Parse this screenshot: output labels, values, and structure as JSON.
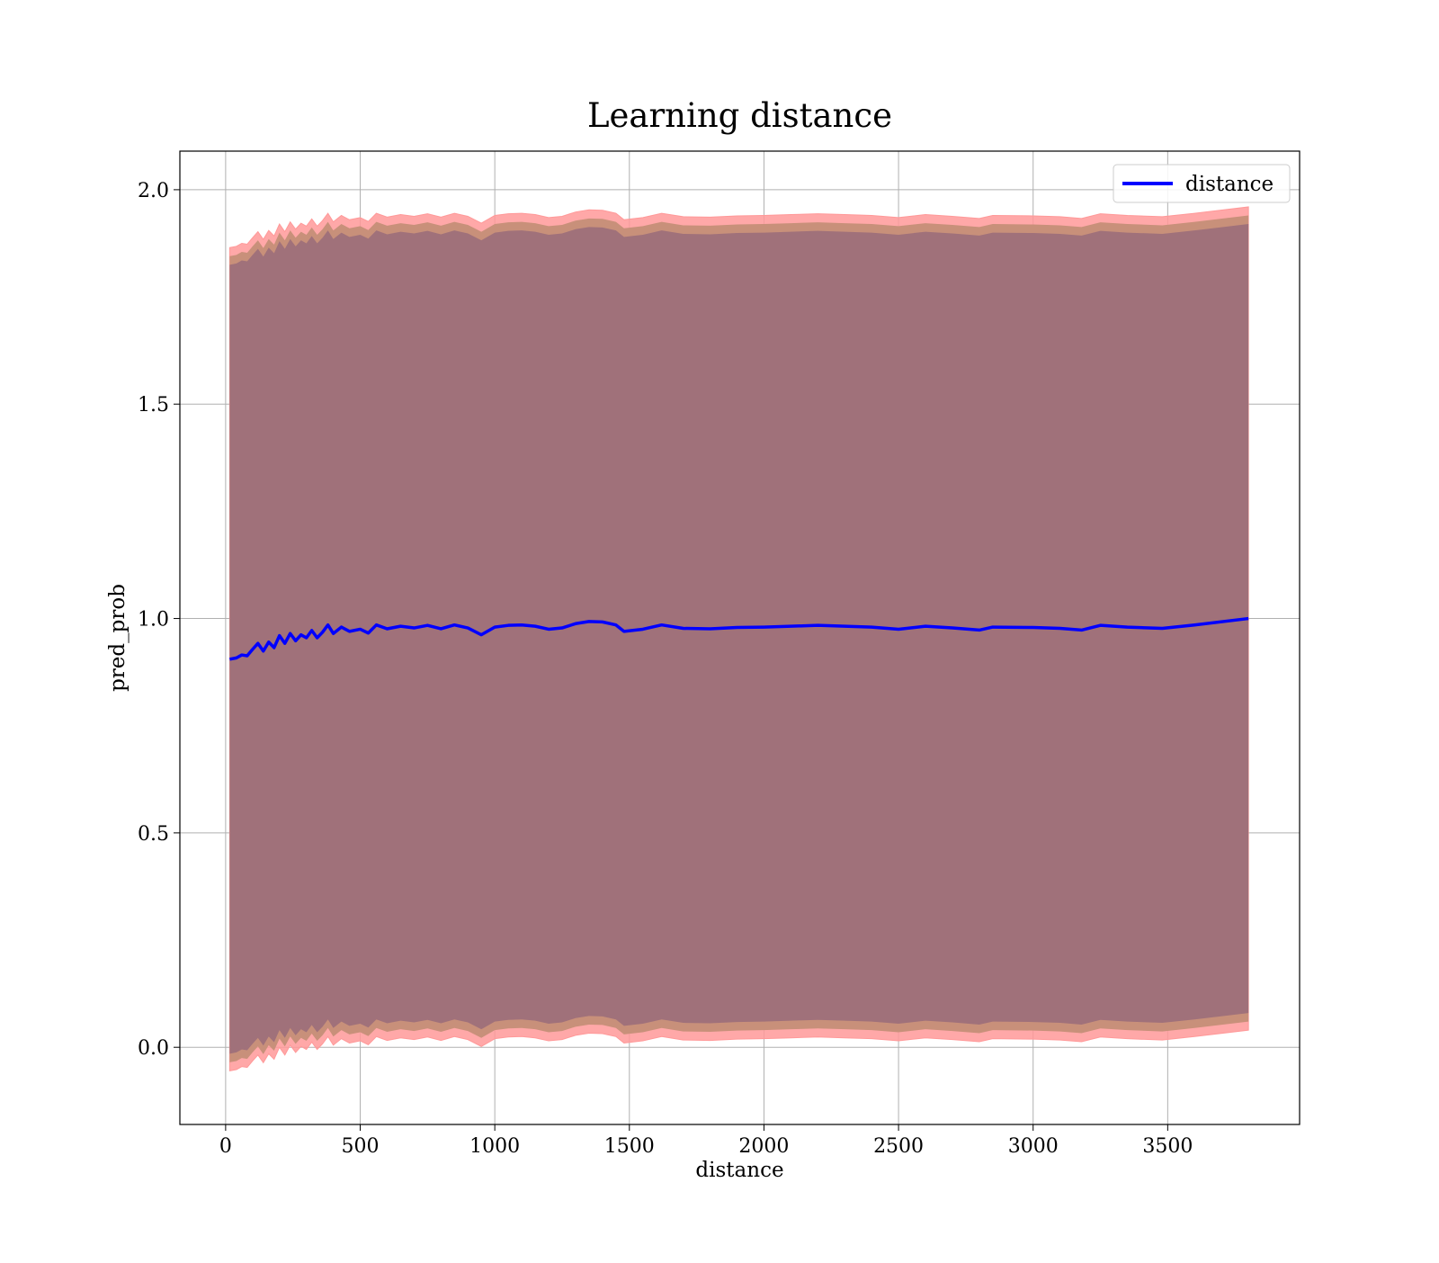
{
  "chart_data": {
    "type": "line",
    "title": "Learning distance",
    "xlabel": "distance",
    "ylabel": "pred_prob",
    "xlim": [
      -170,
      3990
    ],
    "ylim": [
      -0.18,
      2.09
    ],
    "xticks": [
      0,
      500,
      1000,
      1500,
      2000,
      2500,
      3000,
      3500
    ],
    "yticks": [
      0.0,
      0.5,
      1.0,
      1.5,
      2.0
    ],
    "xtick_labels": [
      "0",
      "500",
      "1000",
      "1500",
      "2000",
      "2500",
      "3000",
      "3500"
    ],
    "ytick_labels": [
      "0.0",
      "0.5",
      "1.0",
      "1.5",
      "2.0"
    ],
    "grid": true,
    "legend": {
      "position": "top-right",
      "entries": [
        "distance"
      ]
    },
    "colors": {
      "line": "#0000ff",
      "outer_band": "#ff9999",
      "inner_band": "#c8907a",
      "core_band": "#a0717a"
    },
    "series": [
      {
        "name": "distance",
        "x": [
          15,
          40,
          60,
          80,
          100,
          120,
          140,
          160,
          180,
          200,
          220,
          240,
          260,
          280,
          300,
          320,
          340,
          360,
          380,
          400,
          430,
          460,
          500,
          530,
          560,
          600,
          650,
          700,
          750,
          800,
          850,
          900,
          950,
          1000,
          1050,
          1100,
          1150,
          1200,
          1250,
          1300,
          1350,
          1400,
          1450,
          1480,
          1550,
          1620,
          1700,
          1800,
          1900,
          2000,
          2100,
          2200,
          2300,
          2400,
          2500,
          2600,
          2700,
          2800,
          2850,
          3000,
          3100,
          3180,
          3250,
          3350,
          3480,
          3600,
          3800
        ],
        "y": [
          0.905,
          0.908,
          0.915,
          0.913,
          0.928,
          0.942,
          0.924,
          0.945,
          0.932,
          0.96,
          0.942,
          0.965,
          0.948,
          0.962,
          0.955,
          0.972,
          0.955,
          0.968,
          0.985,
          0.965,
          0.98,
          0.97,
          0.975,
          0.966,
          0.985,
          0.976,
          0.982,
          0.978,
          0.984,
          0.976,
          0.985,
          0.978,
          0.962,
          0.98,
          0.984,
          0.985,
          0.982,
          0.975,
          0.978,
          0.988,
          0.993,
          0.992,
          0.985,
          0.97,
          0.975,
          0.985,
          0.977,
          0.976,
          0.979,
          0.98,
          0.982,
          0.984,
          0.982,
          0.98,
          0.975,
          0.982,
          0.978,
          0.973,
          0.98,
          0.979,
          0.977,
          0.973,
          0.984,
          0.98,
          0.977,
          0.985,
          1.0
        ],
        "band_outer": 0.96,
        "band_inner": 0.94
      }
    ]
  }
}
